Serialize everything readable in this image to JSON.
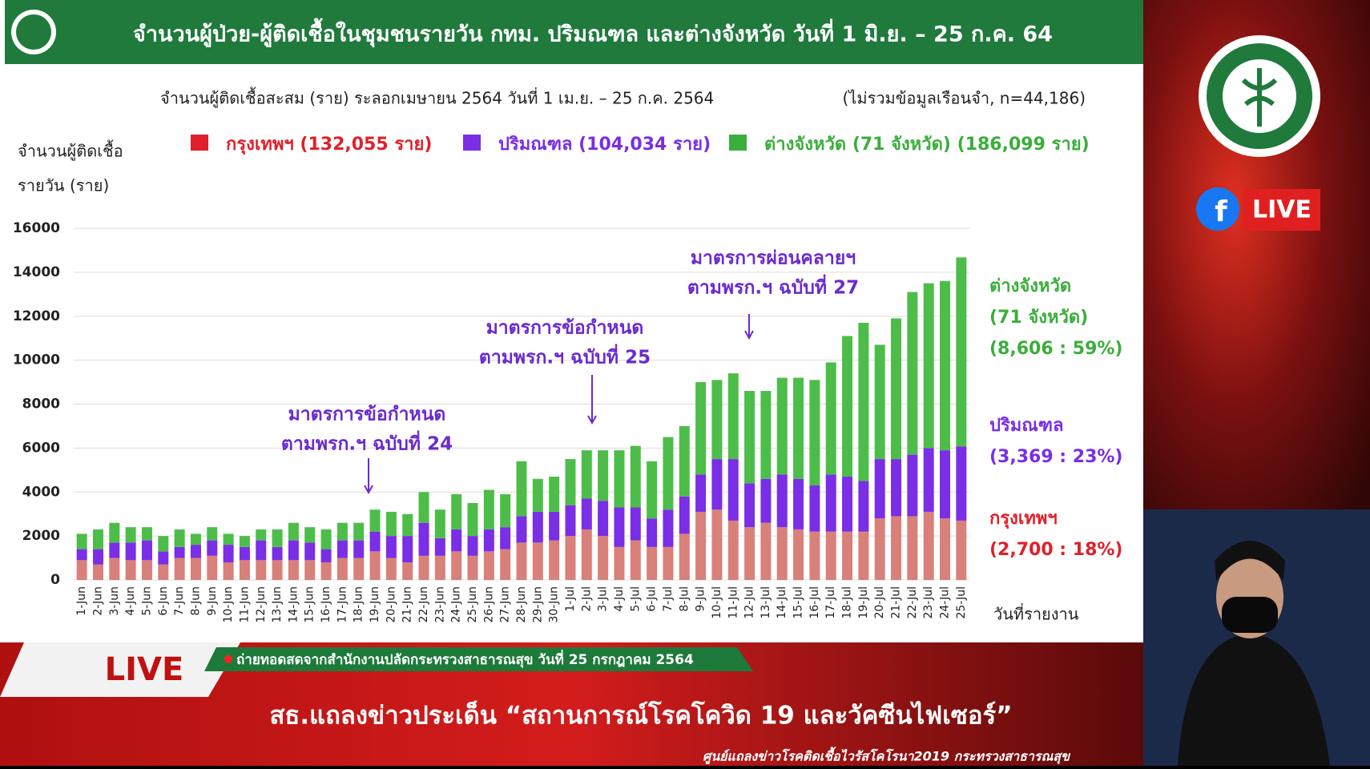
{
  "header": {
    "title": "จำนวนผู้ป่วย-ผู้ติดเชื้อในชุมชนรายวัน กทม. ปริมณฑล และต่างจังหวัด วันที่ 1 มิ.ย. – 25 ก.ค. 64"
  },
  "chart_data": {
    "type": "stacked_bar",
    "subtitle": "จำนวนผู้ติดเชื้อสะสม (ราย) ระลอกเมษายน 2564 วันที่ 1 เม.ย. – 25 ก.ค. 2564",
    "note": "(ไม่รวมข้อมูลเรือนจำ, n=44,186)",
    "y_label": [
      "จำนวนผู้ติดเชื้อ",
      "รายวัน (ราย)"
    ],
    "x_label": "วันที่รายงาน",
    "categories": [
      "1-Jun",
      "2-Jun",
      "3-Jun",
      "4-Jun",
      "5-Jun",
      "6-Jun",
      "7-Jun",
      "8-Jun",
      "9-Jun",
      "10-Jun",
      "11-Jun",
      "12-Jun",
      "13-Jun",
      "14-Jun",
      "15-Jun",
      "16-Jun",
      "17-Jun",
      "18-Jun",
      "19-Jun",
      "20-Jun",
      "21-Jun",
      "22-Jun",
      "23-Jun",
      "24-Jun",
      "25-Jun",
      "26-Jun",
      "27-Jun",
      "28-Jun",
      "29-Jun",
      "30-Jun",
      "1-Jul",
      "2-Jul",
      "3-Jul",
      "4-Jul",
      "5-Jul",
      "6-Jul",
      "7-Jul",
      "8-Jul",
      "9-Jul",
      "10-Jul",
      "11-Jul",
      "12-Jul",
      "13-Jul",
      "14-Jul",
      "15-Jul",
      "16-Jul",
      "17-Jul",
      "18-Jul",
      "19-Jul",
      "20-Jul",
      "21-Jul",
      "22-Jul",
      "23-Jul",
      "24-Jul",
      "25-Jul"
    ],
    "series": [
      {
        "name": "กรุงเทพฯ (132,055 ราย)",
        "color": "#d9807a",
        "legend_color": "#e0202a",
        "values": [
          900,
          700,
          1000,
          900,
          900,
          700,
          1000,
          1000,
          1100,
          800,
          900,
          900,
          900,
          900,
          900,
          800,
          1000,
          1000,
          1300,
          1000,
          800,
          1100,
          1100,
          1300,
          1100,
          1300,
          1400,
          1700,
          1700,
          1800,
          2000,
          2300,
          2000,
          1500,
          1800,
          1500,
          1500,
          2100,
          3100,
          3200,
          2700,
          2400,
          2600,
          2400,
          2300,
          2200,
          2200,
          2200,
          2200,
          2800,
          2900,
          2900,
          3100,
          2800,
          2700
        ]
      },
      {
        "name": "ปริมณฑล (104,034 ราย)",
        "color": "#7a2ee6",
        "legend_color": "#7a2ee6",
        "values": [
          500,
          700,
          700,
          800,
          900,
          600,
          500,
          600,
          700,
          800,
          600,
          900,
          600,
          900,
          800,
          600,
          800,
          800,
          900,
          1000,
          1200,
          1500,
          800,
          1000,
          900,
          1000,
          1000,
          1200,
          1400,
          1300,
          1400,
          1400,
          1600,
          1800,
          1500,
          1300,
          1700,
          1700,
          1700,
          2300,
          2800,
          2000,
          2000,
          2400,
          2300,
          2100,
          2600,
          2500,
          2300,
          2700,
          2600,
          2800,
          2900,
          3100,
          3369
        ]
      },
      {
        "name": "ต่างจังหวัด (71 จังหวัด) (186,099 ราย)",
        "color": "#4dbd4a",
        "legend_color": "#3aae3a",
        "values": [
          700,
          900,
          900,
          700,
          600,
          700,
          800,
          500,
          600,
          500,
          500,
          500,
          800,
          800,
          700,
          900,
          800,
          800,
          1000,
          1100,
          1000,
          1400,
          1300,
          1600,
          1500,
          1800,
          1500,
          2500,
          1500,
          1600,
          2100,
          2200,
          2300,
          2600,
          2800,
          2600,
          3300,
          3200,
          4200,
          3600,
          3900,
          4200,
          4000,
          4400,
          4600,
          4800,
          5100,
          6400,
          7200,
          5200,
          6400,
          7400,
          7500,
          7700,
          8606
        ]
      }
    ],
    "ylim": [
      0,
      16000
    ],
    "yticks": [
      0,
      2000,
      4000,
      6000,
      8000,
      10000,
      12000,
      14000,
      16000
    ],
    "grid": true,
    "annotations": [
      [
        "มาตรการข้อกำหนด",
        "ตามพรก.ฯ ฉบับที่ 24"
      ],
      [
        "มาตรการข้อกำหนด",
        "ตามพรก.ฯ ฉบับที่ 25"
      ],
      [
        "มาตรการผ่อนคลายฯ",
        "ตามพรก.ฯ ฉบับที่ 27"
      ]
    ],
    "series_labels": [
      [
        "กรุงเทพฯ",
        "(2,700 : 18%)"
      ],
      [
        "ปริมณฑล",
        "(3,369 : 23%)"
      ],
      [
        "ต่างจังหวัด",
        "(71 จังหวัด)",
        "(8,606 : 59%)"
      ]
    ]
  },
  "overlay": {
    "live": "LIVE",
    "ticker": "ถ่ายทอดสดจากสำนักงานปลัดกระทรวงสาธารณสุข วันที่ 25 กรกฎาคม 2564",
    "headline": "สธ.แถลงข่าวประเด็น “สถานการณ์โรคโควิด 19 และวัคซีนไฟเซอร์”",
    "footer": "ศูนย์แถลงข่าวโรคติดเชื้อไวรัสโคโรนา2019 กระทรวงสาธารณสุข",
    "fb_live": "LIVE"
  }
}
